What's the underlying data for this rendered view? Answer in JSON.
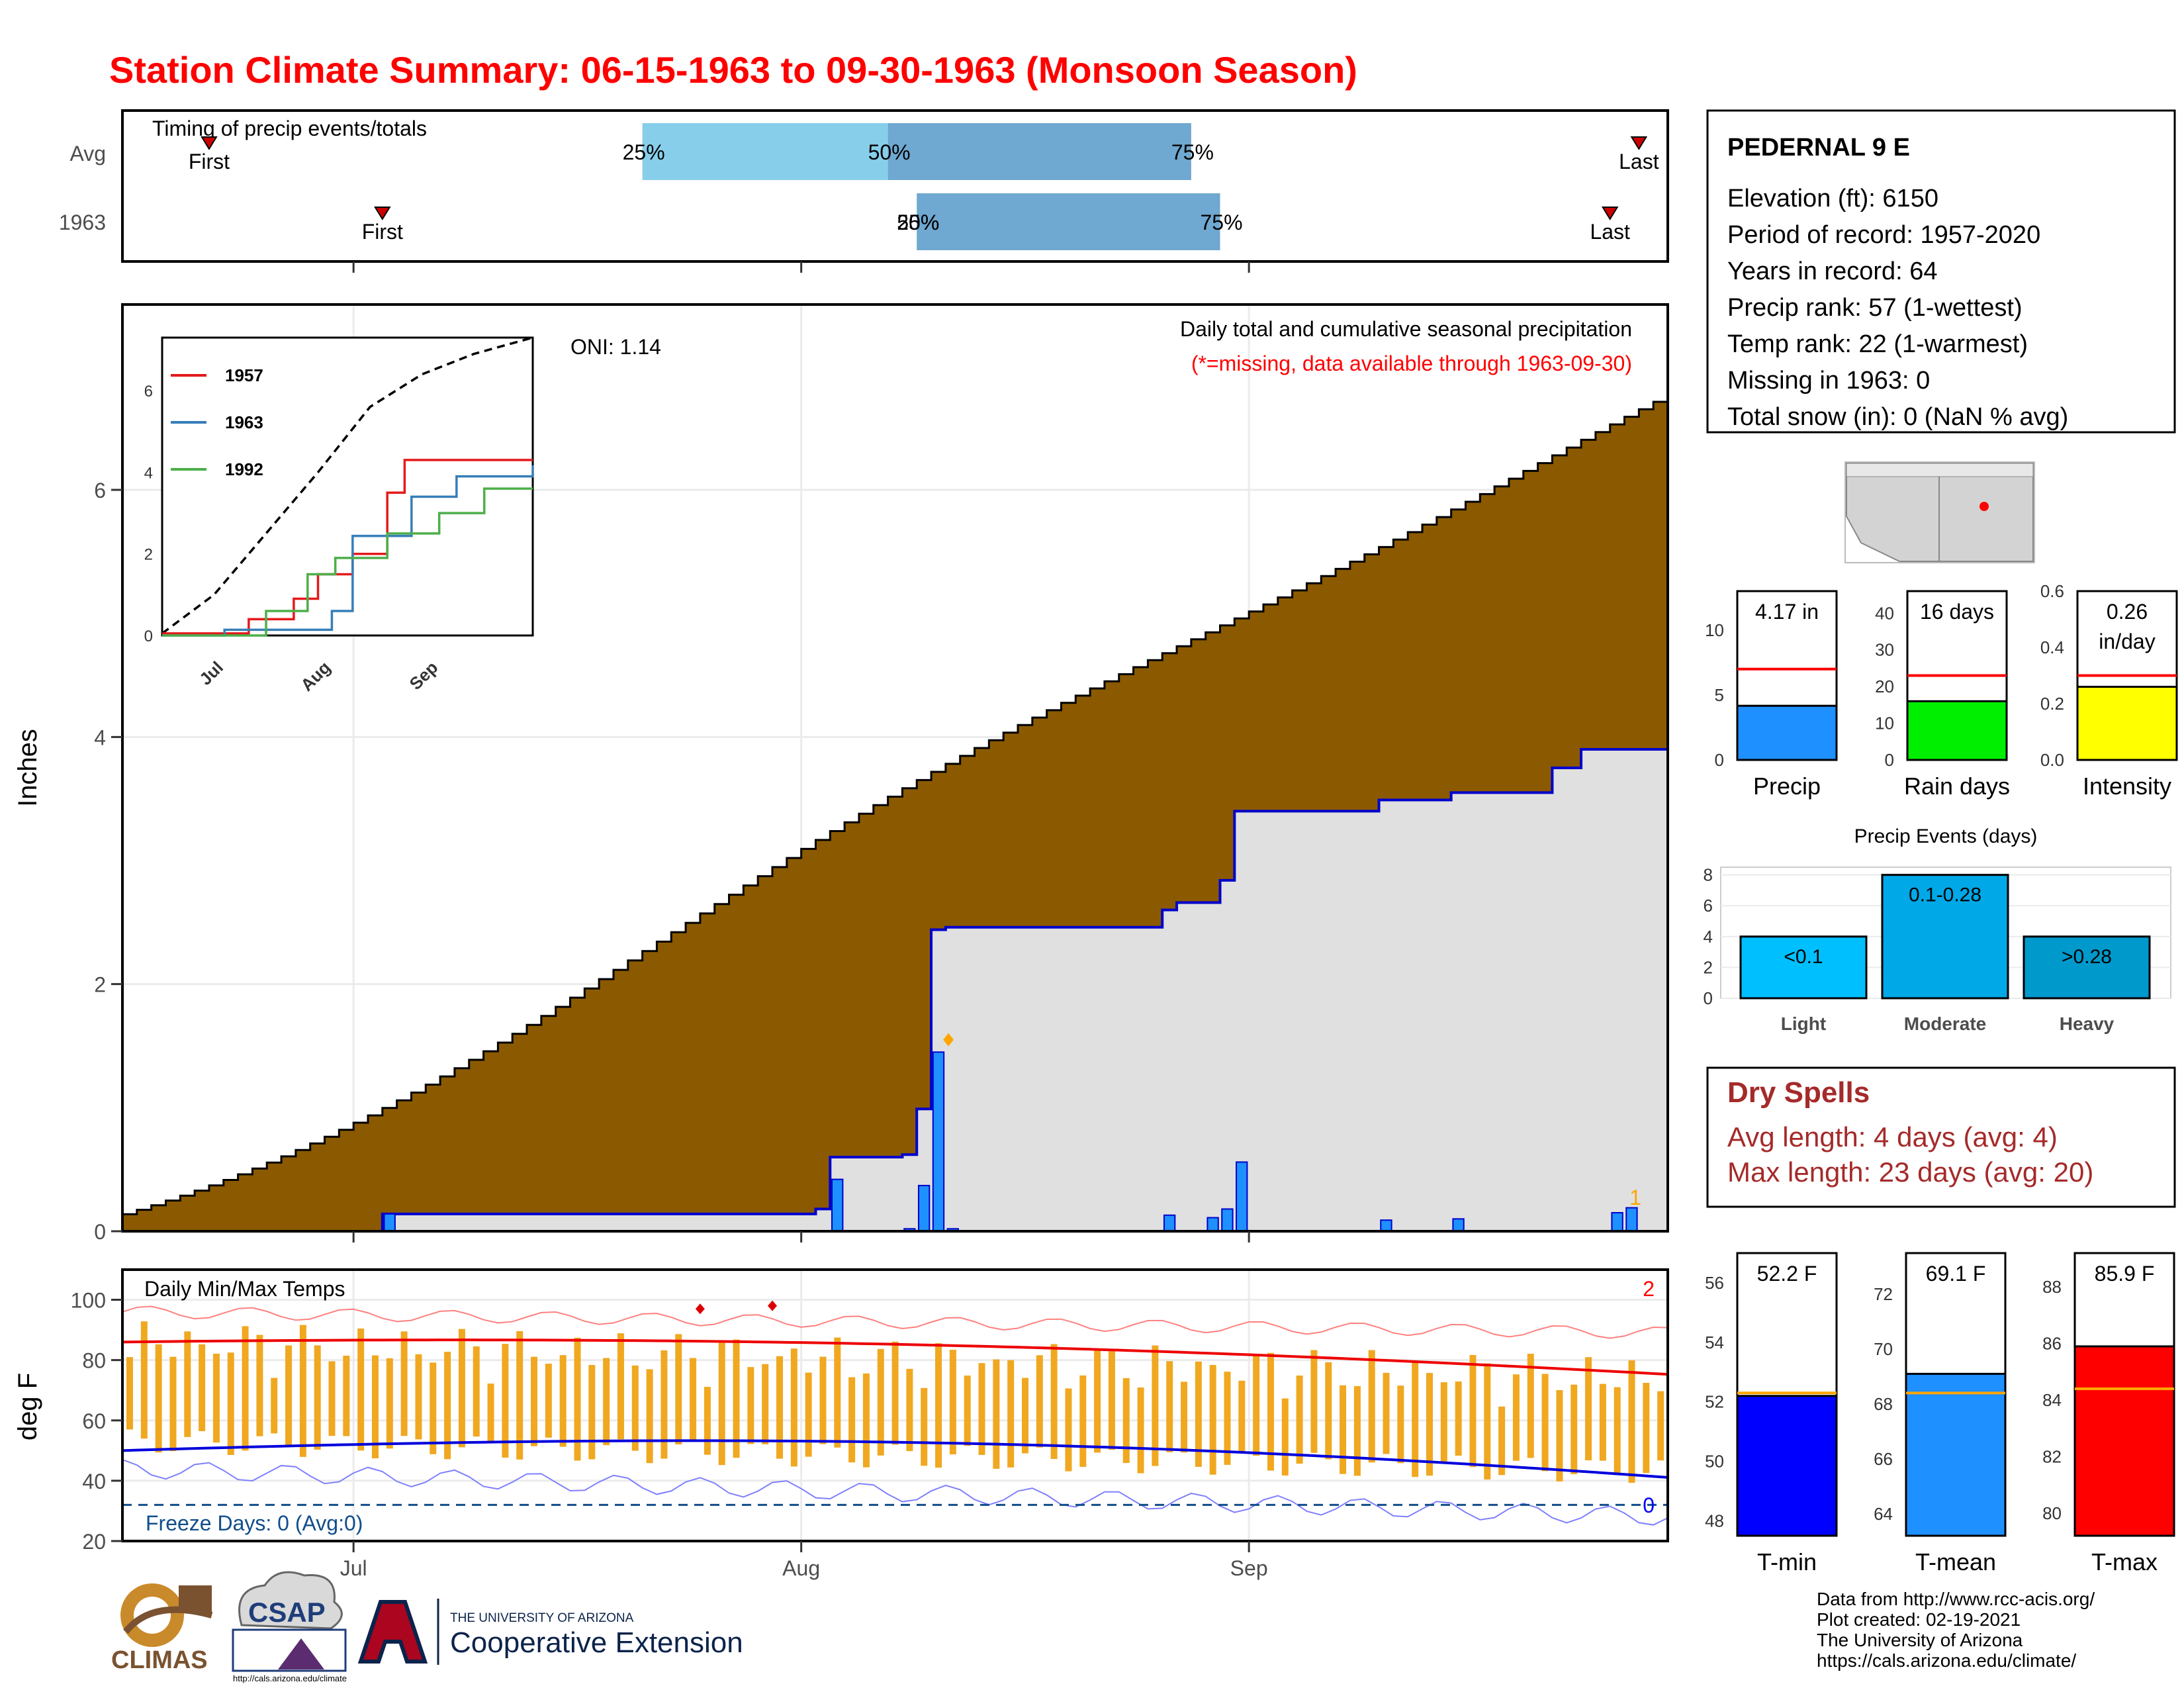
{
  "title": "Station Climate Summary: 06-15-1963 to 09-30-1963 (Monsoon Season)",
  "timing": {
    "title": "Timing of precip events/totals",
    "rows": [
      "Avg",
      "1963"
    ],
    "first_label": "First",
    "last_label": "Last",
    "avg_pct_labels": [
      "25%",
      "50%",
      "75%"
    ],
    "y1963_pct_labels": [
      "25%",
      "50%",
      "75%"
    ],
    "avg": {
      "first": "06-21",
      "p25": "07-21",
      "p50": "08-07",
      "p75": "08-28",
      "last": "09-28"
    },
    "y1963": {
      "first": "07-03",
      "p25": "08-09",
      "p50": "08-09",
      "p75": "08-30",
      "last": "09-26"
    }
  },
  "main": {
    "ylabel": "Inches",
    "title": "Daily total and cumulative seasonal precipitation",
    "subtitle": "(*=missing, data available through 1963-09-30)",
    "oni": "ONI: 1.14",
    "corner_count": "1",
    "ylim": [
      0,
      7.5
    ],
    "yticks": [
      "0",
      "2",
      "4",
      "6"
    ],
    "x_months": [
      "Jul",
      "Aug",
      "Sep"
    ],
    "colors": {
      "avg_fill": "#8b5a00",
      "cum_line": "#0000cc",
      "below_fill": "#e0e0e0",
      "daily_bar": "#1e90ff"
    }
  },
  "inset": {
    "yticks": [
      "0",
      "2",
      "4",
      "6"
    ],
    "xticks": [
      "Jul",
      "Aug",
      "Sep"
    ],
    "legend": [
      {
        "name": "1957",
        "color": "#e41a1c"
      },
      {
        "name": "1963",
        "color": "#377eb8"
      },
      {
        "name": "1992",
        "color": "#4daf4a"
      }
    ]
  },
  "temps": {
    "title": "Daily Min/Max Temps",
    "ylabel": "deg F",
    "yticks": [
      "100",
      "80",
      "60",
      "40",
      "20"
    ],
    "freeze": "Freeze Days: 0 (Avg:0)",
    "count_top": "2",
    "count_bottom": "0",
    "months": [
      "Jul",
      "Aug",
      "Sep"
    ]
  },
  "station": {
    "name": "PEDERNAL 9 E",
    "lines": [
      "Elevation (ft): 6150",
      "Period of record: 1957-2020",
      "Years in record: 64",
      "Precip rank: 57 (1-wettest)",
      "Temp rank: 22 (1-warmest)",
      "Missing in 1963: 0",
      "Total snow (in): 0 (NaN % avg)"
    ]
  },
  "mini_precip": [
    {
      "label": "Precip",
      "value_label": "4.17 in",
      "value": 4.17,
      "avg": 7.0,
      "ylim": [
        0,
        13
      ],
      "ticks": [
        "0",
        "5",
        "10"
      ],
      "color": "#1e90ff"
    },
    {
      "label": "Rain days",
      "value_label": "16 days",
      "value": 16,
      "avg": 23,
      "ylim": [
        0,
        46
      ],
      "ticks": [
        "0",
        "10",
        "20",
        "30",
        "40"
      ],
      "color": "#00ee00"
    },
    {
      "label": "Intensity",
      "value_label": "0.26\nin/day",
      "value": 0.26,
      "avg": 0.3,
      "ylim": [
        0,
        0.6
      ],
      "ticks": [
        "0.0",
        "0.2",
        "0.4",
        "0.6"
      ],
      "color": "#ffff00"
    }
  ],
  "events": {
    "title": "Precip Events (days)",
    "ticks": [
      "0",
      "2",
      "4",
      "6",
      "8"
    ],
    "ylim": [
      0,
      8.5
    ],
    "bars": [
      {
        "cat": "Light",
        "label": "<0.1",
        "value": 4,
        "color": "#00bfff"
      },
      {
        "cat": "Moderate",
        "label": "0.1-0.28",
        "value": 8,
        "color": "#00a8e8"
      },
      {
        "cat": "Heavy",
        "label": ">0.28",
        "value": 4,
        "color": "#0099cc"
      }
    ]
  },
  "dry": {
    "title": "Dry Spells",
    "avg": "Avg length: 4 days (avg: 4)",
    "max": "Max length: 23 days (avg: 20)"
  },
  "mini_temps": [
    {
      "label": "T-min",
      "value_label": "52.2 F",
      "value": 52.2,
      "avg": 52.3,
      "ylim": [
        47.5,
        57
      ],
      "ticks": [
        "48",
        "50",
        "52",
        "54",
        "56"
      ],
      "color": "#0000ff"
    },
    {
      "label": "T-mean",
      "value_label": "69.1 F",
      "value": 69.1,
      "avg": 68.4,
      "ylim": [
        63.2,
        73.5
      ],
      "ticks": [
        "64",
        "66",
        "68",
        "70",
        "72"
      ],
      "color": "#1e90ff"
    },
    {
      "label": "T-max",
      "value_label": "85.9 F",
      "value": 85.9,
      "avg": 84.4,
      "ylim": [
        79.2,
        89.2
      ],
      "ticks": [
        "80",
        "82",
        "84",
        "86",
        "88"
      ],
      "color": "#ff0000"
    }
  ],
  "footer": [
    "Data from http://www.rcc-acis.org/",
    "Plot created: 02-19-2021",
    "The University of Arizona",
    "https://cals.arizona.edu/climate/"
  ],
  "logos": {
    "climas": "CLIMAS",
    "csap": "CSAP",
    "csap_url": "http://cals.arizona.edu/climate",
    "ua_small": "THE UNIVERSITY OF ARIZONA",
    "ua_big": "Cooperative Extension"
  },
  "chart_data": {
    "type": "area",
    "start_date": "1963-06-15",
    "end_date": "1963-09-30",
    "avg_cumulative_end": 6.9,
    "cumulative_1963": [
      [
        "06-15",
        0.0
      ],
      [
        "07-03",
        0.14
      ],
      [
        "08-02",
        0.18
      ],
      [
        "08-03",
        0.6
      ],
      [
        "08-08",
        0.62
      ],
      [
        "08-09",
        0.99
      ],
      [
        "08-10",
        2.44
      ],
      [
        "08-11",
        2.46
      ],
      [
        "08-26",
        2.6
      ],
      [
        "08-27",
        2.66
      ],
      [
        "08-30",
        2.84
      ],
      [
        "08-31",
        3.4
      ],
      [
        "09-10",
        3.49
      ],
      [
        "09-15",
        3.55
      ],
      [
        "09-22",
        3.75
      ],
      [
        "09-24",
        3.9
      ],
      [
        "09-30",
        4.17
      ]
    ],
    "daily_1963": [
      [
        "07-03",
        0.14
      ],
      [
        "08-03",
        0.42
      ],
      [
        "08-08",
        0.02
      ],
      [
        "08-09",
        0.37
      ],
      [
        "08-10",
        1.45
      ],
      [
        "08-11",
        0.02
      ],
      [
        "08-26",
        0.13
      ],
      [
        "08-29",
        0.11
      ],
      [
        "08-30",
        0.18
      ],
      [
        "08-31",
        0.56
      ],
      [
        "09-10",
        0.09
      ],
      [
        "09-15",
        0.1
      ],
      [
        "09-26",
        0.15
      ],
      [
        "09-27",
        0.19
      ]
    ],
    "inset_cumulative": {
      "average": [
        [
          0,
          0.05
        ],
        [
          15,
          1.0
        ],
        [
          30,
          2.5
        ],
        [
          45,
          4.0
        ],
        [
          60,
          5.6
        ],
        [
          75,
          6.4
        ],
        [
          90,
          6.9
        ],
        [
          107,
          7.3
        ]
      ],
      "1957": [
        [
          0,
          0.05
        ],
        [
          25,
          0.4
        ],
        [
          38,
          0.9
        ],
        [
          45,
          1.5
        ],
        [
          55,
          2.0
        ],
        [
          65,
          3.5
        ],
        [
          70,
          4.3
        ],
        [
          107,
          4.3
        ]
      ],
      "1963": [
        [
          0,
          0.0
        ],
        [
          18,
          0.14
        ],
        [
          49,
          0.6
        ],
        [
          55,
          2.44
        ],
        [
          72,
          3.4
        ],
        [
          85,
          3.9
        ],
        [
          107,
          4.17
        ]
      ],
      "1992": [
        [
          0,
          0.0
        ],
        [
          30,
          0.6
        ],
        [
          42,
          1.5
        ],
        [
          50,
          1.9
        ],
        [
          65,
          2.5
        ],
        [
          80,
          3.0
        ],
        [
          93,
          3.6
        ],
        [
          107,
          3.6
        ]
      ]
    },
    "temps_daily_avg_max_start_end": [
      86,
      75
    ],
    "temps_daily_avg_min_start_end": [
      50,
      42
    ],
    "freeze_line": 32
  }
}
